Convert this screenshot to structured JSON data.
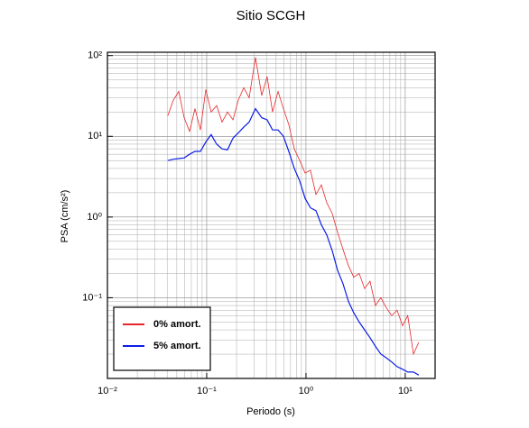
{
  "chart_data": {
    "type": "line",
    "title": "Sitio SCGH",
    "x_label": "Periodo (s)",
    "y_label": "PSA (cm/s²)",
    "x_log": true,
    "y_log": true,
    "grid": true,
    "legend_position": "lower left",
    "xlim": [
      0.01,
      20
    ],
    "ylim": [
      0.01,
      110
    ],
    "xticks": [
      {
        "value": 0.01,
        "label": "10⁻²"
      },
      {
        "value": 0.1,
        "label": "10⁻¹"
      },
      {
        "value": 1,
        "label": "10⁰"
      },
      {
        "value": 10,
        "label": "10¹"
      }
    ],
    "yticks": [
      {
        "value": 0.1,
        "label": "10⁻¹"
      },
      {
        "value": 1,
        "label": "10⁰"
      },
      {
        "value": 10,
        "label": "10¹"
      },
      {
        "value": 100,
        "label": "10²"
      }
    ],
    "x": [
      0.0406,
      0.0461,
      0.0523,
      0.0593,
      0.0672,
      0.0762,
      0.0864,
      0.098,
      0.111,
      0.126,
      0.143,
      0.162,
      0.184,
      0.208,
      0.236,
      0.268,
      0.31,
      0.358,
      0.406,
      0.461,
      0.523,
      0.593,
      0.672,
      0.762,
      0.864,
      0.98,
      1.11,
      1.26,
      1.43,
      1.62,
      1.84,
      2.08,
      2.36,
      2.68,
      3.03,
      3.44,
      3.9,
      4.42,
      5.01,
      5.68,
      6.44,
      7.31,
      8.28,
      9.39,
      10.6,
      12.1,
      13.7
    ],
    "series": [
      {
        "name": "0% amort.",
        "color": "#e8262a",
        "values": [
          18,
          28,
          36,
          17,
          11.5,
          22,
          12,
          38,
          20,
          24,
          15,
          20,
          16,
          28,
          40,
          30,
          95,
          32,
          55,
          20,
          36,
          22,
          14,
          7,
          5,
          3.5,
          3.8,
          1.9,
          2.5,
          1.5,
          1.1,
          0.65,
          0.4,
          0.25,
          0.18,
          0.2,
          0.13,
          0.16,
          0.08,
          0.1,
          0.075,
          0.06,
          0.07,
          0.045,
          0.06,
          0.02,
          0.028
        ]
      },
      {
        "name": "5% amort.",
        "color": "#0a1ee6",
        "values": [
          5,
          5.2,
          5.3,
          5.4,
          6,
          6.5,
          6.5,
          8.5,
          10.5,
          8,
          7,
          6.8,
          9.5,
          11,
          13,
          15,
          22,
          17,
          16,
          12,
          12,
          10,
          6.5,
          4,
          2.8,
          1.7,
          1.3,
          1.2,
          0.8,
          0.6,
          0.38,
          0.22,
          0.15,
          0.09,
          0.065,
          0.05,
          0.04,
          0.032,
          0.025,
          0.02,
          0.018,
          0.016,
          0.014,
          0.013,
          0.012,
          0.012,
          0.011
        ]
      }
    ]
  }
}
